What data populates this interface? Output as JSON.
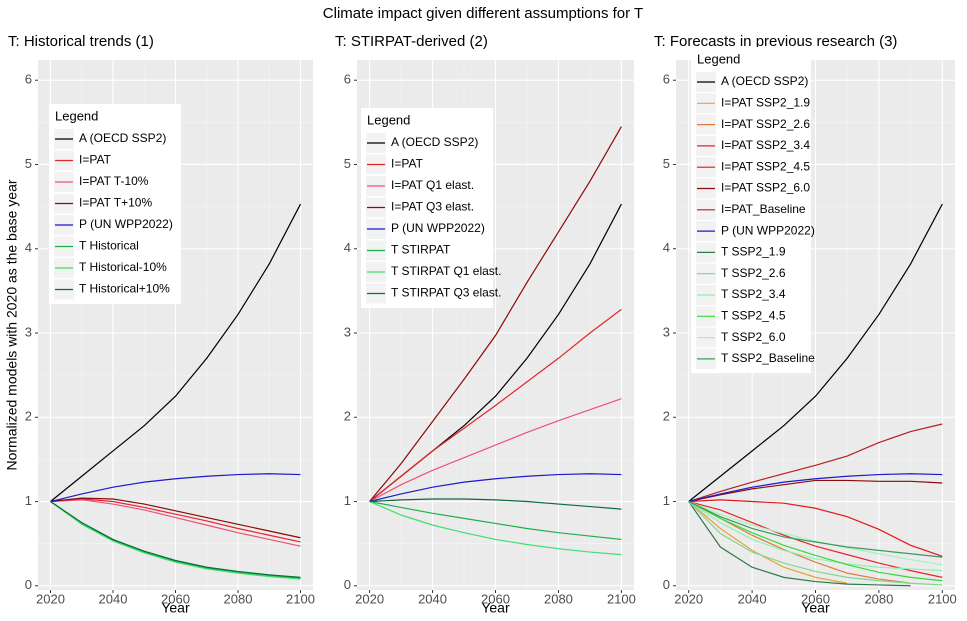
{
  "title": "Climate impact given different assumptions for T",
  "y_label": "Normalized models with 2020 as the base year",
  "chart_data": [
    {
      "type": "line",
      "title": "T: Historical trends (1)",
      "x_label": "Year",
      "legend_title": "Legend",
      "x": [
        2020,
        2030,
        2040,
        2050,
        2060,
        2070,
        2080,
        2090,
        2100
      ],
      "xlim": [
        2016,
        2104
      ],
      "xticks": [
        2020,
        2040,
        2060,
        2080,
        2100
      ],
      "ylim": [
        -0.05,
        6.24
      ],
      "yticks": [
        0,
        1,
        2,
        3,
        4,
        5,
        6
      ],
      "grid": true,
      "series": [
        {
          "name": "A (OECD SSP2)",
          "color": "#000000",
          "values": [
            1,
            1.3,
            1.6,
            1.9,
            2.25,
            2.7,
            3.22,
            3.82,
            4.53
          ]
        },
        {
          "name": "I=PAT",
          "color": "#e3262b",
          "values": [
            1,
            1.03,
            1.0,
            0.93,
            0.85,
            0.77,
            0.68,
            0.6,
            0.52
          ]
        },
        {
          "name": "I=PAT T-10%",
          "color": "#f0507a",
          "values": [
            1,
            1.02,
            0.97,
            0.9,
            0.81,
            0.72,
            0.63,
            0.55,
            0.47
          ]
        },
        {
          "name": "I=PAT T+10%",
          "color": "#8b0a0a",
          "values": [
            1,
            1.04,
            1.03,
            0.97,
            0.89,
            0.81,
            0.73,
            0.65,
            0.57
          ]
        },
        {
          "name": "P (UN WPP2022)",
          "color": "#1a1acc",
          "values": [
            1,
            1.09,
            1.17,
            1.23,
            1.27,
            1.3,
            1.32,
            1.33,
            1.32
          ]
        },
        {
          "name": "T Historical",
          "color": "#1fae4a",
          "values": [
            1,
            0.74,
            0.54,
            0.4,
            0.29,
            0.21,
            0.16,
            0.12,
            0.09
          ]
        },
        {
          "name": "T Historical-10%",
          "color": "#3de070",
          "values": [
            1,
            0.73,
            0.53,
            0.39,
            0.28,
            0.2,
            0.15,
            0.11,
            0.08
          ]
        },
        {
          "name": "T Historical+10%",
          "color": "#0b6b3a",
          "values": [
            1,
            0.75,
            0.55,
            0.41,
            0.3,
            0.22,
            0.17,
            0.13,
            0.1
          ]
        }
      ]
    },
    {
      "type": "line",
      "title": "T: STIRPAT-derived (2)",
      "x_label": "Year",
      "legend_title": "Legend",
      "x": [
        2020,
        2030,
        2040,
        2050,
        2060,
        2070,
        2080,
        2090,
        2100
      ],
      "xlim": [
        2016,
        2104
      ],
      "xticks": [
        2020,
        2040,
        2060,
        2080,
        2100
      ],
      "ylim": [
        -0.05,
        6.24
      ],
      "yticks": [
        0,
        1,
        2,
        3,
        4,
        5,
        6
      ],
      "grid": true,
      "series": [
        {
          "name": "A (OECD SSP2)",
          "color": "#000000",
          "values": [
            1,
            1.3,
            1.6,
            1.9,
            2.25,
            2.7,
            3.22,
            3.82,
            4.53
          ]
        },
        {
          "name": "I=PAT",
          "color": "#e3262b",
          "values": [
            1,
            1.3,
            1.6,
            1.87,
            2.14,
            2.42,
            2.7,
            3.0,
            3.28
          ]
        },
        {
          "name": "I=PAT Q1 elast.",
          "color": "#f0507a",
          "values": [
            1,
            1.2,
            1.37,
            1.52,
            1.67,
            1.82,
            1.96,
            2.09,
            2.22
          ]
        },
        {
          "name": "I=PAT Q3 elast.",
          "color": "#8b0a0a",
          "values": [
            1,
            1.45,
            1.95,
            2.45,
            2.97,
            3.6,
            4.2,
            4.8,
            5.45
          ]
        },
        {
          "name": "P (UN WPP2022)",
          "color": "#1a1acc",
          "values": [
            1,
            1.09,
            1.17,
            1.23,
            1.27,
            1.3,
            1.32,
            1.33,
            1.32
          ]
        },
        {
          "name": "T STIRPAT",
          "color": "#1fae4a",
          "values": [
            1,
            0.93,
            0.86,
            0.8,
            0.74,
            0.68,
            0.63,
            0.59,
            0.55
          ]
        },
        {
          "name": "T STIRPAT Q1 elast.",
          "color": "#3de070",
          "values": [
            1,
            0.84,
            0.72,
            0.63,
            0.55,
            0.49,
            0.44,
            0.4,
            0.37
          ]
        },
        {
          "name": "T STIRPAT Q3 elast.",
          "color": "#0b6b3a",
          "values": [
            1,
            1.02,
            1.03,
            1.03,
            1.02,
            1.0,
            0.97,
            0.94,
            0.91
          ]
        }
      ]
    },
    {
      "type": "line",
      "title": "T: Forecasts in previous research (3)",
      "x_label": "Year",
      "legend_title": "Legend",
      "x": [
        2020,
        2030,
        2040,
        2050,
        2060,
        2070,
        2080,
        2090,
        2100
      ],
      "xlim": [
        2016,
        2104
      ],
      "xticks": [
        2020,
        2040,
        2060,
        2080,
        2100
      ],
      "ylim": [
        -0.05,
        6.24
      ],
      "yticks": [
        0,
        1,
        2,
        3,
        4,
        5,
        6
      ],
      "grid": true,
      "series": [
        {
          "name": "A (OECD SSP2)",
          "color": "#000000",
          "values": [
            1,
            1.3,
            1.6,
            1.9,
            2.25,
            2.7,
            3.22,
            3.82,
            4.53
          ]
        },
        {
          "name": "I=PAT SSP2_1.9",
          "color": "#e6a23c",
          "values": [
            1,
            0.68,
            0.42,
            0.22,
            0.1,
            0.03,
            null,
            null,
            null
          ]
        },
        {
          "name": "I=PAT SSP2_2.6",
          "color": "#e07b39",
          "values": [
            1,
            0.8,
            0.6,
            0.43,
            0.28,
            0.15,
            0.08,
            0.03,
            null
          ]
        },
        {
          "name": "I=PAT SSP2_3.4",
          "color": "#e3262b",
          "values": [
            1,
            0.9,
            0.75,
            0.6,
            0.47,
            0.37,
            0.27,
            0.18,
            0.1
          ]
        },
        {
          "name": "I=PAT SSP2_4.5",
          "color": "#e01818",
          "values": [
            1,
            1.02,
            1.0,
            0.98,
            0.92,
            0.82,
            0.67,
            0.48,
            0.35
          ]
        },
        {
          "name": "I=PAT SSP2_6.0",
          "color": "#8b0a0a",
          "values": [
            1,
            1.08,
            1.15,
            1.2,
            1.25,
            1.25,
            1.24,
            1.24,
            1.22
          ]
        },
        {
          "name": "I=PAT_Baseline",
          "color": "#b52020",
          "values": [
            1,
            1.12,
            1.23,
            1.33,
            1.43,
            1.54,
            1.7,
            1.83,
            1.92
          ]
        },
        {
          "name": "P (UN WPP2022)",
          "color": "#1a1acc",
          "values": [
            1,
            1.09,
            1.17,
            1.23,
            1.27,
            1.3,
            1.32,
            1.33,
            1.32
          ]
        },
        {
          "name": "T SSP2_1.9",
          "color": "#2f7a4a",
          "values": [
            1,
            0.46,
            0.22,
            0.1,
            0.05,
            0.02,
            0.01,
            0.0,
            null
          ]
        },
        {
          "name": "T SSP2_2.6",
          "color": "#7fd68f",
          "values": [
            1,
            0.62,
            0.4,
            0.27,
            0.17,
            0.1,
            0.06,
            0.03,
            0.01
          ]
        },
        {
          "name": "T SSP2_3.4",
          "color": "#8ff0b0",
          "values": [
            1,
            0.75,
            0.55,
            0.42,
            0.32,
            0.26,
            0.22,
            0.2,
            0.18
          ]
        },
        {
          "name": "T SSP2_4.5",
          "color": "#35d935",
          "values": [
            1,
            0.8,
            0.63,
            0.48,
            0.36,
            0.25,
            0.16,
            0.1,
            0.06
          ]
        },
        {
          "name": "T SSP2_6.0",
          "color": "#a8f0c0",
          "values": [
            1,
            0.85,
            0.72,
            0.62,
            0.53,
            0.45,
            0.38,
            0.31,
            0.25
          ]
        },
        {
          "name": "T SSP2_Baseline",
          "color": "#3c9a5c",
          "values": [
            1,
            0.82,
            0.68,
            0.58,
            0.52,
            0.46,
            0.42,
            0.38,
            0.34
          ]
        }
      ]
    }
  ]
}
